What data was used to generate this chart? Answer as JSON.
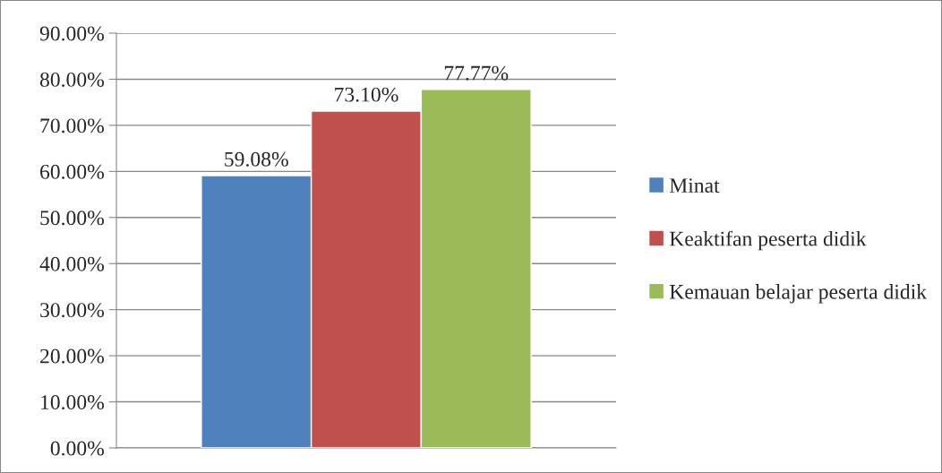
{
  "chart_data": {
    "type": "bar",
    "categories": [
      null
    ],
    "series": [
      {
        "name": "Minat",
        "color": "#4f81bd",
        "values": [
          59.08
        ],
        "value_labels": [
          "59.08%"
        ]
      },
      {
        "name": "Keaktifan peserta didik",
        "color": "#c0504d",
        "values": [
          73.1
        ],
        "value_labels": [
          "73.10%"
        ]
      },
      {
        "name": "Kemauan belajar peserta didik",
        "color": "#9bbb59",
        "values": [
          77.77
        ],
        "value_labels": [
          "77.77%"
        ]
      }
    ],
    "ylim": [
      0,
      90
    ],
    "yticks": [
      {
        "value": 0,
        "label": "0.00%"
      },
      {
        "value": 10,
        "label": "10.00%"
      },
      {
        "value": 20,
        "label": "20.00%"
      },
      {
        "value": 30,
        "label": "30.00%"
      },
      {
        "value": 40,
        "label": "40.00%"
      },
      {
        "value": 50,
        "label": "50.00%"
      },
      {
        "value": 60,
        "label": "60.00%"
      },
      {
        "value": 70,
        "label": "70.00%"
      },
      {
        "value": 80,
        "label": "80.00%"
      },
      {
        "value": 90,
        "label": "90.00%"
      }
    ],
    "grid": "y",
    "legend": "right"
  }
}
